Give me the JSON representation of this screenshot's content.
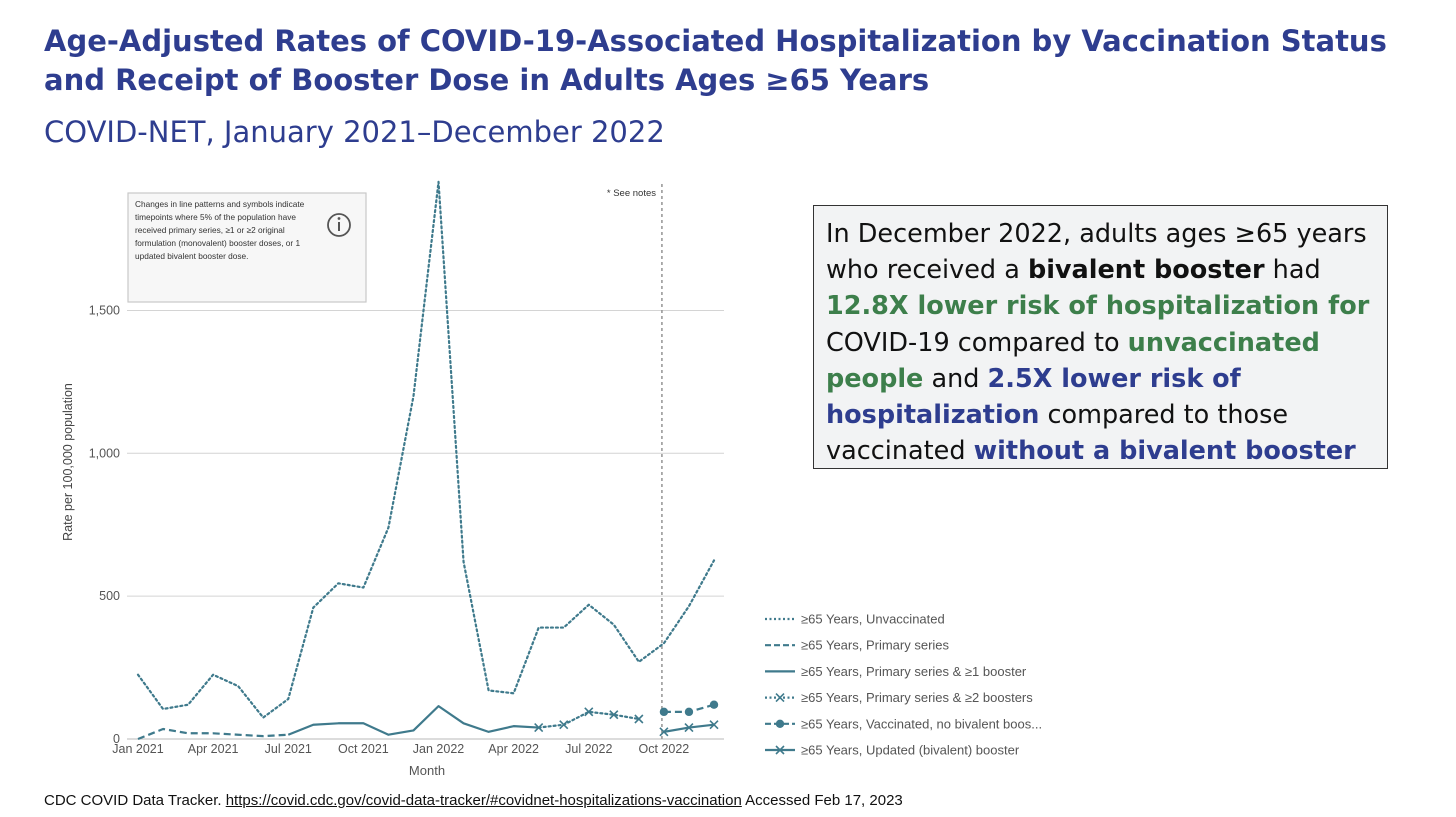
{
  "header": {
    "title": "Age-Adjusted Rates of COVID-19-Associated Hospitalization by Vaccination Status and Receipt of Booster Dose in Adults Ages ≥65 Years",
    "subtitle": "COVID-NET, January 2021–December 2022"
  },
  "callout": {
    "p1": "In December 2022, adults ages ≥65 years who received a ",
    "p2": "bivalent booster",
    "p3": " had ",
    "p4": "12.8X lower risk of hospitalization for",
    "p5": " COVID-19 compared to ",
    "p6": "unvaccinated people",
    "p7": " and ",
    "p8": "2.5X lower risk of hospitalization",
    "p9": " compared to those vaccinated ",
    "p10": "without a bivalent booster"
  },
  "citation": {
    "prefix": "CDC COVID Data Tracker. ",
    "link": "https://covid.cdc.gov/covid-data-tracker/#covidnet-hospitalizations-vaccination",
    "suffix": " Accessed Feb 17, 2023"
  },
  "chart_data": {
    "type": "line",
    "xlabel": "Month",
    "ylabel": "Rate per 100,000 population",
    "ylim": [
      0,
      1950
    ],
    "yticks": [
      "0",
      "500",
      "1,000",
      "1,500"
    ],
    "ytick_values": [
      0,
      500,
      1000,
      1500
    ],
    "x_months": [
      "Jan 2021",
      "Feb 2021",
      "Mar 2021",
      "Apr 2021",
      "May 2021",
      "Jun 2021",
      "Jul 2021",
      "Aug 2021",
      "Sep 2021",
      "Oct 2021",
      "Nov 2021",
      "Dec 2021",
      "Jan 2022",
      "Feb 2022",
      "Mar 2022",
      "Apr 2022",
      "May 2022",
      "Jun 2022",
      "Jul 2022",
      "Aug 2022",
      "Sep 2022",
      "Oct 2022",
      "Nov 2022",
      "Dec 2022"
    ],
    "xtick_labels": [
      "Jan 2021",
      "Apr 2021",
      "Jul 2021",
      "Oct 2021",
      "Jan 2022",
      "Apr 2022",
      "Jul 2022",
      "Oct 2022"
    ],
    "xtick_indices": [
      0,
      3,
      6,
      9,
      12,
      15,
      18,
      21
    ],
    "note_marker": "* See notes",
    "note_marker_month": "Oct 2022",
    "info_box_text": "Changes in line patterns and symbols indicate timepoints where 5% of the population have received primary series, ≥1 or ≥2 original formulation (monovalent) booster doses, or 1 updated bivalent booster dose.",
    "series_color": "#3f7a8c",
    "series": [
      {
        "name": "≥65 Years, Unvaccinated",
        "style": "dotted",
        "marker": "none",
        "x": [
          "Jan 2021",
          "Feb 2021",
          "Mar 2021",
          "Apr 2021",
          "May 2021",
          "Jun 2021",
          "Jul 2021",
          "Aug 2021",
          "Sep 2021",
          "Oct 2021",
          "Nov 2021",
          "Dec 2021",
          "Jan 2022",
          "Feb 2022",
          "Mar 2022",
          "Apr 2022",
          "May 2022",
          "Jun 2022",
          "Jul 2022",
          "Aug 2022",
          "Sep 2022",
          "Oct 2022",
          "Nov 2022",
          "Dec 2022"
        ],
        "values": [
          225,
          105,
          120,
          225,
          185,
          75,
          140,
          460,
          545,
          530,
          740,
          1200,
          1950,
          620,
          170,
          160,
          390,
          390,
          470,
          400,
          270,
          335,
          465,
          625
        ]
      },
      {
        "name": "≥65 Years, Primary series",
        "style": "dashed",
        "marker": "none",
        "x": [
          "Jan 2021",
          "Feb 2021",
          "Mar 2021",
          "Apr 2021",
          "May 2021",
          "Jun 2021",
          "Jul 2021"
        ],
        "values": [
          0,
          35,
          20,
          20,
          15,
          10,
          15
        ]
      },
      {
        "name": "≥65 Years, Primary series & ≥1 booster",
        "style": "solid",
        "marker": "none",
        "x": [
          "Jul 2021",
          "Aug 2021",
          "Sep 2021",
          "Oct 2021",
          "Nov 2021",
          "Dec 2021",
          "Jan 2022",
          "Feb 2022",
          "Mar 2022",
          "Apr 2022",
          "May 2022"
        ],
        "values": [
          15,
          50,
          55,
          55,
          15,
          30,
          115,
          55,
          25,
          45,
          40
        ]
      },
      {
        "name": "≥65 Years, Primary series & ≥2 boosters",
        "style": "dotted",
        "marker": "x",
        "x": [
          "May 2022",
          "Jun 2022",
          "Jul 2022",
          "Aug 2022",
          "Sep 2022"
        ],
        "values": [
          40,
          50,
          95,
          85,
          70
        ]
      },
      {
        "name": "≥65 Years, Vaccinated, no bivalent boos...",
        "style": "dashed",
        "marker": "dot",
        "x": [
          "Oct 2022",
          "Nov 2022",
          "Dec 2022"
        ],
        "values": [
          95,
          95,
          120
        ]
      },
      {
        "name": "≥65 Years, Updated (bivalent) booster",
        "style": "solid",
        "marker": "x",
        "x": [
          "Oct 2022",
          "Nov 2022",
          "Dec 2022"
        ],
        "values": [
          25,
          40,
          50
        ]
      }
    ],
    "legend_position": "bottom-right",
    "grid": true
  }
}
